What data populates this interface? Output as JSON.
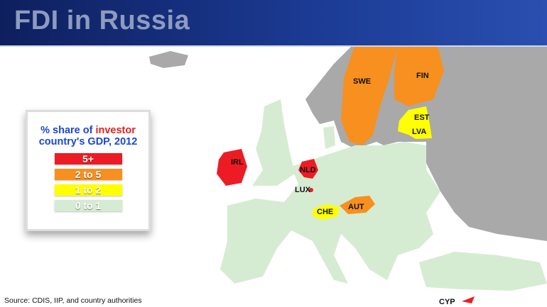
{
  "header": {
    "title": "FDI in Russia"
  },
  "legend": {
    "title_part1": "% share of ",
    "title_highlight": "investor",
    "title_part2": "country's GDP, 2012",
    "items": [
      {
        "label": "5+",
        "color": "#ed1c24"
      },
      {
        "label": "2 to 5",
        "color": "#f7901e"
      },
      {
        "label": "1 to 2",
        "color": "#ffff00"
      },
      {
        "label": "0 to 1",
        "color": "#d6ecd2"
      }
    ]
  },
  "map": {
    "other_land_color": "#a9a9a9",
    "countries": [
      {
        "code": "SWE",
        "category": "2 to 5"
      },
      {
        "code": "FIN",
        "category": "2 to 5"
      },
      {
        "code": "EST",
        "category": "1 to 2"
      },
      {
        "code": "LVA",
        "category": "1 to 2"
      },
      {
        "code": "IRL",
        "category": "5+"
      },
      {
        "code": "NLD",
        "category": "5+"
      },
      {
        "code": "LUX",
        "category": "5+"
      },
      {
        "code": "CHE",
        "category": "1 to 2"
      },
      {
        "code": "AUT",
        "category": "2 to 5"
      },
      {
        "code": "CYP",
        "category": "5+"
      }
    ]
  },
  "source": "Source: CDIS, IIP, and country authorities"
}
